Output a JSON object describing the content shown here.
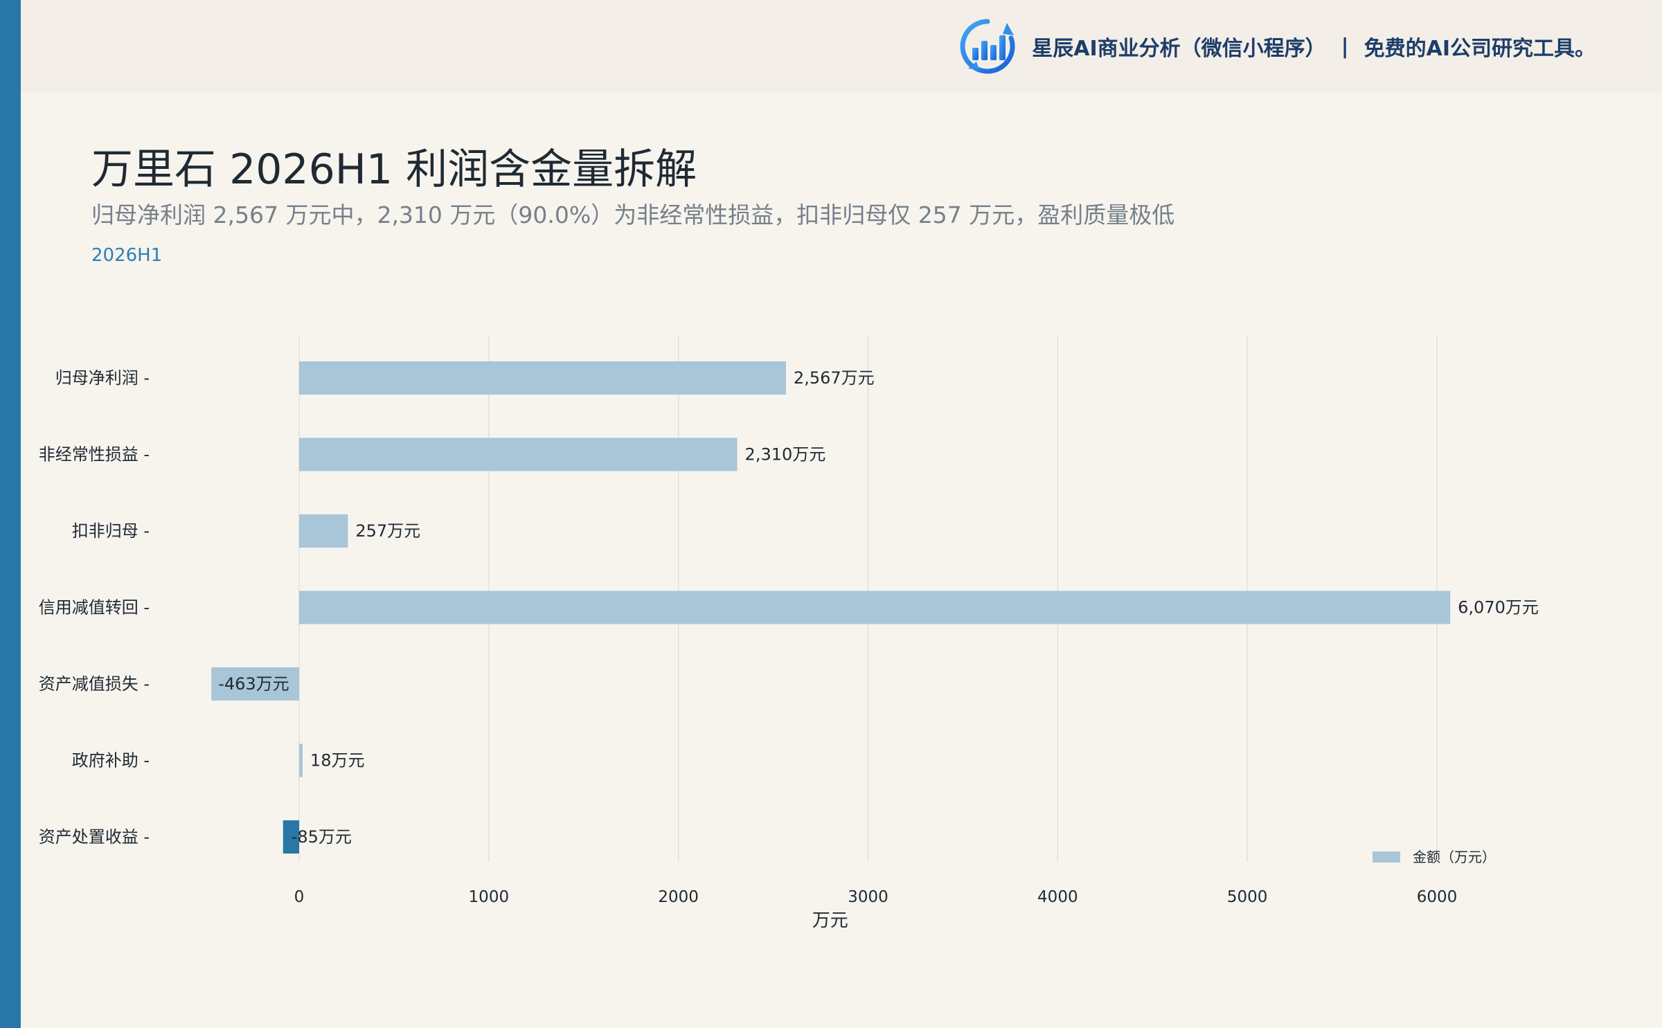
{
  "brand": {
    "icon": "bar-chart-logo-icon",
    "name": "星辰AI商业分析（微信小程序）",
    "separator": "|",
    "tagline": "免费的AI公司研究工具。"
  },
  "header": {
    "title": "万里石 2026H1 利润含金量拆解",
    "subtitle": "归母净利润 2,567 万元中，2,310 万元（90.0%）为非经常性损益，扣非归母仅 257 万元，盈利质量极低",
    "period": "2026H1"
  },
  "colors": {
    "accent": "#2877a6",
    "bar_light": "#a9c5d8",
    "bar_dark": "#2877a6",
    "brand_text": "#1d3d69",
    "period": "#2d7fb5"
  },
  "chart_data": {
    "type": "bar",
    "orientation": "horizontal",
    "categories": [
      "归母净利润",
      "非经常性损益",
      "扣非归母",
      "信用减值转回",
      "资产减值损失",
      "政府补助",
      "资产处置收益"
    ],
    "series": [
      {
        "name": "金额（万元）",
        "values": [
          2567,
          2310,
          257,
          6070,
          -463,
          18,
          -85
        ],
        "labels": [
          "2,567万元",
          "2,310万元",
          "257万元",
          "6,070万元",
          "-463万元",
          "18万元",
          "-85万元"
        ]
      }
    ],
    "highlight_index": 6,
    "xlabel": "万元",
    "xlim": [
      -470,
      6500
    ],
    "xticks": [
      0,
      1000,
      2000,
      3000,
      4000,
      5000,
      6000
    ],
    "grid": true,
    "legend": {
      "position": "bottom-right"
    }
  }
}
